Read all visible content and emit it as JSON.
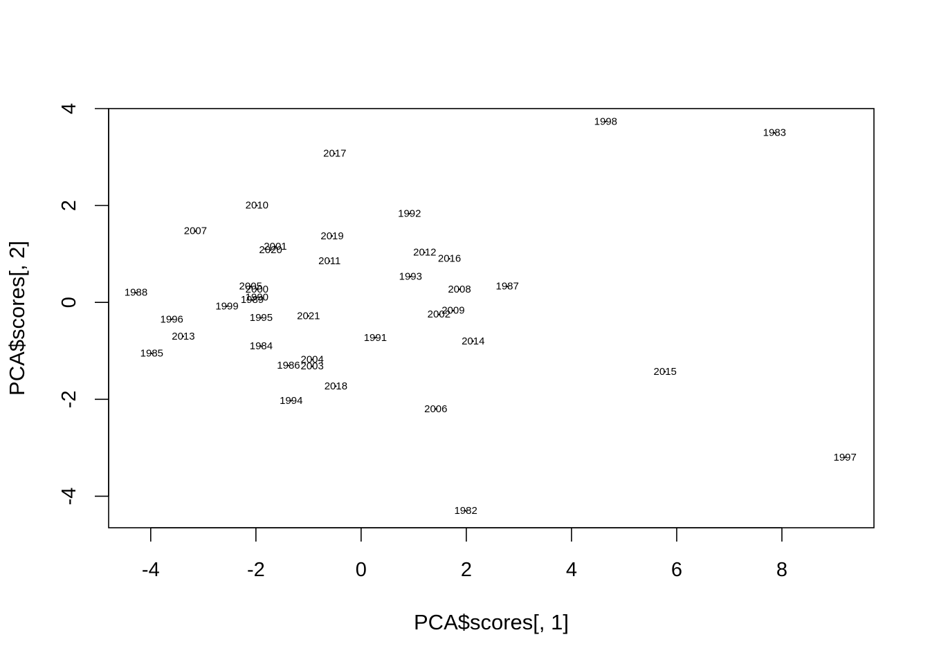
{
  "chart_data": {
    "type": "scatter",
    "title": "",
    "xlabel": "PCA$scores[, 1]",
    "ylabel": "PCA$scores[, 2]",
    "xlim": [
      -4.8,
      9.75
    ],
    "ylim": [
      -4.65,
      4.0
    ],
    "xticks": [
      -4,
      -2,
      0,
      2,
      4,
      6,
      8
    ],
    "yticks": [
      -4,
      -2,
      0,
      2,
      4
    ],
    "grid": false,
    "legend": "none",
    "colors": {
      "points": "#000000",
      "axes": "#000000",
      "background": "#ffffff"
    },
    "points": [
      {
        "label": "1982",
        "x": 1.99,
        "y": -4.3
      },
      {
        "label": "1983",
        "x": 7.86,
        "y": 3.5
      },
      {
        "label": "1984",
        "x": -1.9,
        "y": -0.9
      },
      {
        "label": "1985",
        "x": -3.98,
        "y": -1.05
      },
      {
        "label": "1986",
        "x": -1.38,
        "y": -1.3
      },
      {
        "label": "1987",
        "x": 2.78,
        "y": 0.33
      },
      {
        "label": "1988",
        "x": -4.28,
        "y": 0.2
      },
      {
        "label": "1989",
        "x": -2.07,
        "y": 0.05
      },
      {
        "label": "1990",
        "x": -1.98,
        "y": 0.1
      },
      {
        "label": "1991",
        "x": 0.27,
        "y": -0.73
      },
      {
        "label": "1992",
        "x": 0.92,
        "y": 1.83
      },
      {
        "label": "1993",
        "x": 0.94,
        "y": 0.53
      },
      {
        "label": "1994",
        "x": -1.33,
        "y": -2.03
      },
      {
        "label": "1995",
        "x": -1.9,
        "y": -0.32
      },
      {
        "label": "1996",
        "x": -3.6,
        "y": -0.35
      },
      {
        "label": "1997",
        "x": 9.2,
        "y": -3.2
      },
      {
        "label": "1998",
        "x": 4.65,
        "y": 3.73
      },
      {
        "label": "1999",
        "x": -2.55,
        "y": -0.08
      },
      {
        "label": "2000",
        "x": -1.98,
        "y": 0.27
      },
      {
        "label": "2001",
        "x": -1.63,
        "y": 1.15
      },
      {
        "label": "2002",
        "x": 1.48,
        "y": -0.25
      },
      {
        "label": "2003",
        "x": -0.93,
        "y": -1.32
      },
      {
        "label": "2004",
        "x": -0.93,
        "y": -1.18
      },
      {
        "label": "2005",
        "x": -2.1,
        "y": 0.33
      },
      {
        "label": "2006",
        "x": 1.42,
        "y": -2.2
      },
      {
        "label": "2007",
        "x": -3.15,
        "y": 1.47
      },
      {
        "label": "2008",
        "x": 1.87,
        "y": 0.27
      },
      {
        "label": "2009",
        "x": 1.75,
        "y": -0.17
      },
      {
        "label": "2010",
        "x": -1.98,
        "y": 2.0
      },
      {
        "label": "2011",
        "x": -0.6,
        "y": 0.85
      },
      {
        "label": "2012",
        "x": 1.21,
        "y": 1.03
      },
      {
        "label": "2013",
        "x": -3.38,
        "y": -0.7
      },
      {
        "label": "2014",
        "x": 2.13,
        "y": -0.8
      },
      {
        "label": "2015",
        "x": 5.78,
        "y": -1.43
      },
      {
        "label": "2016",
        "x": 1.68,
        "y": 0.9
      },
      {
        "label": "2017",
        "x": -0.5,
        "y": 3.07
      },
      {
        "label": "2018",
        "x": -0.48,
        "y": -1.73
      },
      {
        "label": "2019",
        "x": -0.55,
        "y": 1.37
      },
      {
        "label": "2020",
        "x": -1.72,
        "y": 1.08
      },
      {
        "label": "2021",
        "x": -1.0,
        "y": -0.28
      }
    ]
  }
}
